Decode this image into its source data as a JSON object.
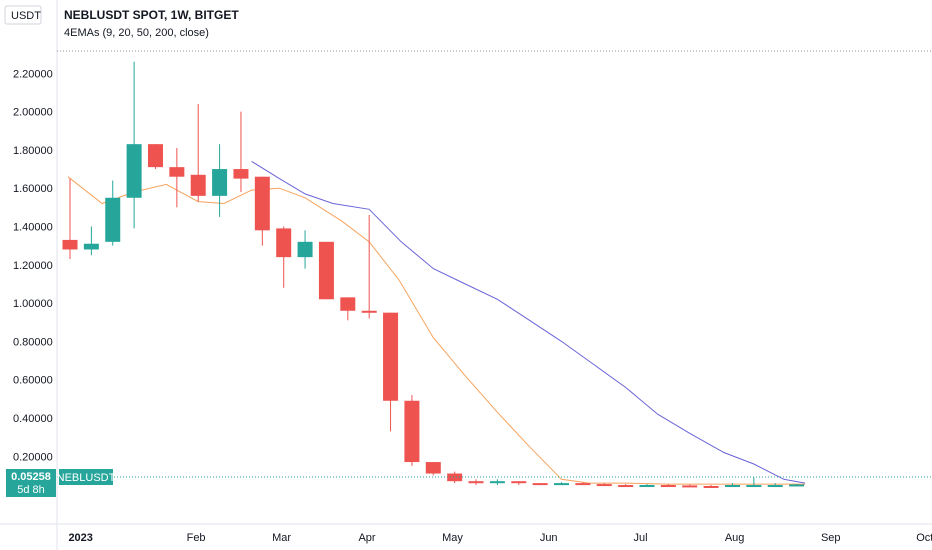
{
  "header": {
    "currency_label": "USDT",
    "title": "NEBLUSDT SPOT, 1W, BITGET",
    "indicator_label": "4EMAs (9, 20, 50, 200, close)"
  },
  "price_tag": {
    "price": "0.05258",
    "countdown": "5d 8h",
    "symbol": "NEBLUSDT"
  },
  "colors": {
    "up": "#26a69a",
    "down": "#ef5350",
    "ema_fast": "#f7a35c",
    "ema_slow": "#6a64d8",
    "axis": "#131722",
    "background": "#ffffff"
  },
  "chart_data": {
    "type": "candlestick",
    "ylim": [
      -0.2,
      2.26
    ],
    "y_ticks": [
      "2.20000",
      "2.00000",
      "1.80000",
      "1.60000",
      "1.40000",
      "1.20000",
      "1.00000",
      "0.80000",
      "0.60000",
      "0.40000",
      "0.20000"
    ],
    "x_ticks": [
      {
        "label": "2023",
        "week": 0.5
      },
      {
        "label": "Feb",
        "week": 5.9
      },
      {
        "label": "Mar",
        "week": 9.9
      },
      {
        "label": "Apr",
        "week": 13.9
      },
      {
        "label": "May",
        "week": 17.9
      },
      {
        "label": "Jun",
        "week": 22.4
      },
      {
        "label": "Jul",
        "week": 26.7
      },
      {
        "label": "Aug",
        "week": 31.1
      },
      {
        "label": "Sep",
        "week": 35.6
      },
      {
        "label": "Oct",
        "week": 40.0
      }
    ],
    "candles": [
      {
        "o": 1.33,
        "h": 1.65,
        "l": 1.23,
        "c": 1.28
      },
      {
        "o": 1.28,
        "h": 1.4,
        "l": 1.25,
        "c": 1.31
      },
      {
        "o": 1.32,
        "h": 1.64,
        "l": 1.3,
        "c": 1.55
      },
      {
        "o": 1.55,
        "h": 2.26,
        "l": 1.39,
        "c": 1.83
      },
      {
        "o": 1.83,
        "h": 1.83,
        "l": 1.7,
        "c": 1.71
      },
      {
        "o": 1.71,
        "h": 1.81,
        "l": 1.5,
        "c": 1.66
      },
      {
        "o": 1.67,
        "h": 2.04,
        "l": 1.53,
        "c": 1.56
      },
      {
        "o": 1.56,
        "h": 1.83,
        "l": 1.45,
        "c": 1.7
      },
      {
        "o": 1.7,
        "h": 2.0,
        "l": 1.58,
        "c": 1.65
      },
      {
        "o": 1.66,
        "h": 1.66,
        "l": 1.3,
        "c": 1.38
      },
      {
        "o": 1.39,
        "h": 1.4,
        "l": 1.08,
        "c": 1.24
      },
      {
        "o": 1.24,
        "h": 1.38,
        "l": 1.18,
        "c": 1.32
      },
      {
        "o": 1.32,
        "h": 1.32,
        "l": 1.02,
        "c": 1.02
      },
      {
        "o": 1.03,
        "h": 1.03,
        "l": 0.91,
        "c": 0.96
      },
      {
        "o": 0.96,
        "h": 1.46,
        "l": 0.92,
        "c": 0.95
      },
      {
        "o": 0.95,
        "h": 0.95,
        "l": 0.33,
        "c": 0.49
      },
      {
        "o": 0.49,
        "h": 0.52,
        "l": 0.15,
        "c": 0.17
      },
      {
        "o": 0.17,
        "h": 0.17,
        "l": 0.1,
        "c": 0.11
      },
      {
        "o": 0.11,
        "h": 0.12,
        "l": 0.06,
        "c": 0.07
      },
      {
        "o": 0.07,
        "h": 0.08,
        "l": 0.05,
        "c": 0.06
      },
      {
        "o": 0.06,
        "h": 0.08,
        "l": 0.05,
        "c": 0.07
      },
      {
        "o": 0.07,
        "h": 0.07,
        "l": 0.05,
        "c": 0.06
      },
      {
        "o": 0.06,
        "h": 0.06,
        "l": 0.05,
        "c": 0.055
      },
      {
        "o": 0.055,
        "h": 0.065,
        "l": 0.05,
        "c": 0.06
      },
      {
        "o": 0.06,
        "h": 0.065,
        "l": 0.05,
        "c": 0.055
      },
      {
        "o": 0.055,
        "h": 0.06,
        "l": 0.045,
        "c": 0.05
      },
      {
        "o": 0.05,
        "h": 0.055,
        "l": 0.045,
        "c": 0.048
      },
      {
        "o": 0.048,
        "h": 0.055,
        "l": 0.045,
        "c": 0.05
      },
      {
        "o": 0.05,
        "h": 0.055,
        "l": 0.045,
        "c": 0.048
      },
      {
        "o": 0.048,
        "h": 0.052,
        "l": 0.04,
        "c": 0.045
      },
      {
        "o": 0.045,
        "h": 0.05,
        "l": 0.04,
        "c": 0.042
      },
      {
        "o": 0.042,
        "h": 0.06,
        "l": 0.04,
        "c": 0.05
      },
      {
        "o": 0.05,
        "h": 0.09,
        "l": 0.045,
        "c": 0.05
      },
      {
        "o": 0.05,
        "h": 0.06,
        "l": 0.045,
        "c": 0.05
      },
      {
        "o": 0.05,
        "h": 0.055,
        "l": 0.045,
        "c": 0.053
      }
    ],
    "ema_fast": [
      [
        -0.1,
        1.66
      ],
      [
        1.5,
        1.52
      ],
      [
        3,
        1.58
      ],
      [
        4.5,
        1.62
      ],
      [
        6,
        1.53
      ],
      [
        7.2,
        1.52
      ],
      [
        8.5,
        1.59
      ],
      [
        9.8,
        1.6
      ],
      [
        11,
        1.55
      ],
      [
        12.7,
        1.43
      ],
      [
        14,
        1.32
      ],
      [
        15.4,
        1.12
      ],
      [
        17,
        0.82
      ],
      [
        18.5,
        0.62
      ],
      [
        20,
        0.43
      ],
      [
        21.5,
        0.25
      ],
      [
        23,
        0.08
      ],
      [
        24.3,
        0.06
      ],
      [
        26,
        0.06
      ],
      [
        28,
        0.055
      ],
      [
        30,
        0.055
      ],
      [
        32,
        0.055
      ],
      [
        34.4,
        0.055
      ]
    ],
    "ema_slow": [
      [
        8.5,
        1.74
      ],
      [
        9.8,
        1.65
      ],
      [
        11,
        1.57
      ],
      [
        12.3,
        1.52
      ],
      [
        14,
        1.49
      ],
      [
        15.5,
        1.32
      ],
      [
        17,
        1.18
      ],
      [
        18.5,
        1.1
      ],
      [
        20,
        1.02
      ],
      [
        21.5,
        0.91
      ],
      [
        23,
        0.8
      ],
      [
        24.5,
        0.68
      ],
      [
        26,
        0.56
      ],
      [
        27.5,
        0.42
      ],
      [
        29,
        0.32
      ],
      [
        30.6,
        0.22
      ],
      [
        32,
        0.16
      ],
      [
        33.4,
        0.08
      ],
      [
        34.4,
        0.06
      ]
    ]
  }
}
